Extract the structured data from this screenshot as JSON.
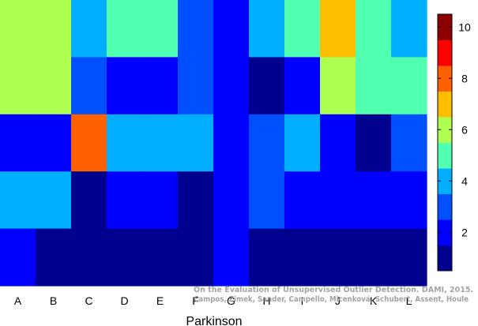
{
  "chart_data": {
    "type": "heatmap",
    "xlabel": "Parkinson",
    "categories": [
      "A",
      "B",
      "C",
      "D",
      "E",
      "F",
      "G",
      "H",
      "I",
      "J",
      "K",
      "L"
    ],
    "rows": 5,
    "values": [
      [
        6,
        6,
        4,
        5,
        5,
        3,
        2,
        4,
        5,
        7,
        5,
        4
      ],
      [
        6,
        6,
        3,
        2,
        2,
        3,
        2,
        1,
        2,
        6,
        5,
        5
      ],
      [
        2,
        2,
        8,
        4,
        4,
        4,
        2,
        3,
        4,
        2,
        1,
        3
      ],
      [
        4,
        4,
        1,
        2,
        2,
        1,
        2,
        3,
        2,
        2,
        2,
        2
      ],
      [
        2,
        1,
        1,
        1,
        1,
        1,
        2,
        1,
        1,
        1,
        1,
        1
      ]
    ],
    "colorbar": {
      "range": [
        0.5,
        10.5
      ],
      "ticks": [
        2,
        4,
        6,
        8,
        10
      ],
      "colors": [
        "#00008f",
        "#0000ff",
        "#0050ff",
        "#00afff",
        "#50ffaf",
        "#afff50",
        "#ffbf00",
        "#ff6000",
        "#ff0000",
        "#8f0000"
      ]
    },
    "grid": false,
    "legend": "colorbar-right"
  },
  "credit": {
    "line1": "On the Evaluation of Unsupervised Outlier Detection. DAMI, 2015.",
    "line2": "Campos, Zimek, Sander, Campello, Micenková, Schubert, Assent, Houle"
  }
}
